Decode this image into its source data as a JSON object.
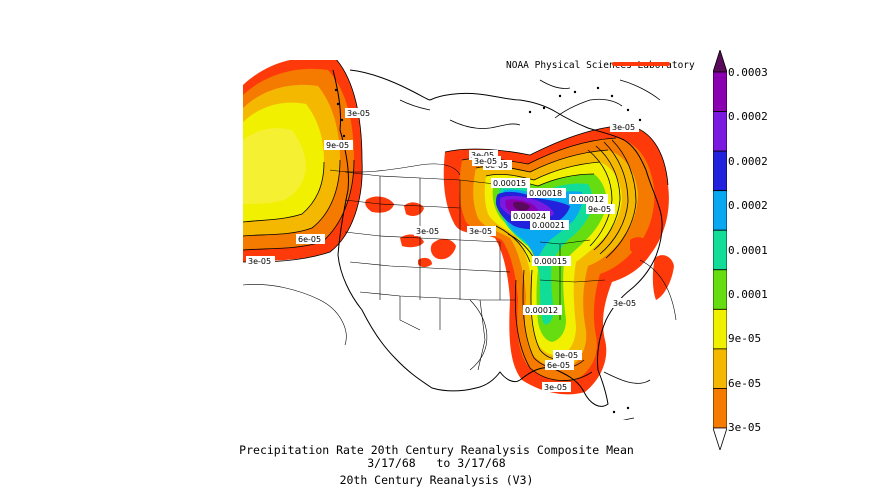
{
  "credit": "NOAA Physical Sciences Laboratory",
  "caption": {
    "line1": "Precipitation Rate 20th Century Reanalysis Composite Mean",
    "line2": "3/17/68   to 3/17/68",
    "line3": "20th Century Reanalysis (V3)"
  },
  "colorbar": {
    "labels": [
      "0.0003",
      "0.0002",
      "0.0002",
      "0.0002",
      "0.0001",
      "0.0001",
      "9e-05",
      "6e-05",
      "3e-05"
    ],
    "colors": [
      "#5a0a5a",
      "#8a00b0",
      "#7a1ae0",
      "#2222dd",
      "#0aa8f0",
      "#11dd99",
      "#66dd11",
      "#f0f000",
      "#f5b800",
      "#f57a00",
      "#ff3a0a"
    ]
  },
  "contour_labels": [
    "3e-05",
    "9e-05",
    "6e-05",
    "3e-05",
    "3e-05",
    "6e-05",
    "0.00015",
    "0.00018",
    "0.00024",
    "0.00021",
    "3e-05",
    "3e-05",
    "0.00012",
    "9e-05",
    "3e-05",
    "0.00015",
    "0.00012",
    "3e-05",
    "9e-05",
    "6e-05",
    "3e-05",
    "3e-05"
  ]
}
